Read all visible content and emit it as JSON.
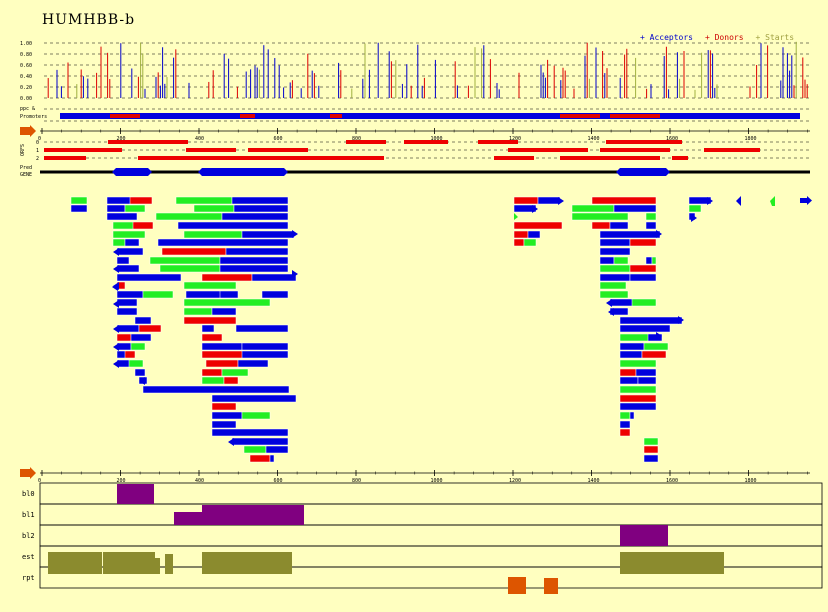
{
  "title": "HUMHBB-b",
  "legend": [
    {
      "label": "+ Acceptors",
      "color": "#0000cc"
    },
    {
      "label": "+ Donors",
      "color": "#cc0000"
    },
    {
      "label": "+ Starts",
      "color": "#a0a040"
    }
  ],
  "colors": {
    "background": "#ffffc0",
    "blue": "#0000dd",
    "red": "#ee0000",
    "green": "#22ee22",
    "purple": "#800080",
    "olive": "#8b8b2e",
    "orange": "#dd5500"
  },
  "y_axis_labels": [
    "1.00",
    "0.80",
    "0.60",
    "0.40",
    "0.20",
    "0.00"
  ],
  "strand_labels": [
    "ppc &",
    "Promoters"
  ],
  "frame_labels": [
    "0",
    "1",
    "2"
  ],
  "frame_side_label": "ORFS",
  "gene_labels": [
    "Pred",
    "GENE"
  ],
  "ruler_ticks": [
    "0",
    "200",
    "400",
    "600",
    "800",
    "1000",
    "1200",
    "1400",
    "1600",
    "1800"
  ],
  "track_labels": [
    "bl0",
    "bl1",
    "bl2",
    "est",
    "rpt"
  ],
  "marker_icons": [
    "arrow-marker-icon",
    "arrow-marker-icon"
  ]
}
